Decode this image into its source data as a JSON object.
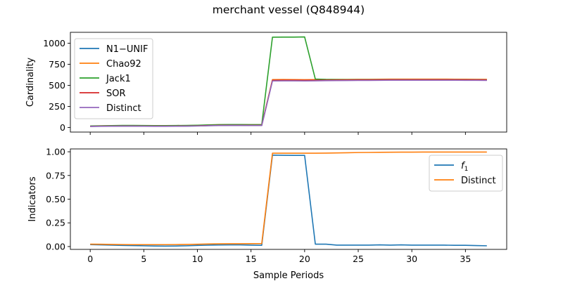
{
  "title": "merchant vessel (Q848944)",
  "colors": {
    "N1-UNIF": "#1f77b4",
    "Chao92": "#ff7f0e",
    "Jack1": "#2ca02c",
    "SOR": "#d62728",
    "Distinct": "#9467bd",
    "f1": "#1f77b4",
    "Distinct2": "#ff7f0e"
  },
  "chart_data": [
    {
      "type": "line",
      "ylabel": "Cardinality",
      "xlabel": "",
      "xlim": [
        -1.85,
        38.85
      ],
      "ylim": [
        -55,
        1130
      ],
      "xticks": [
        0,
        5,
        10,
        15,
        20,
        25,
        30,
        35
      ],
      "yticks": [
        0,
        250,
        500,
        750,
        1000
      ],
      "yticklabels": [
        "0",
        "250",
        "500",
        "750",
        "1000"
      ],
      "legend_position": "upper left",
      "x": [
        0,
        1,
        2,
        3,
        4,
        5,
        6,
        7,
        8,
        9,
        10,
        11,
        12,
        13,
        14,
        15,
        16,
        17,
        18,
        19,
        20,
        21,
        22,
        23,
        24,
        25,
        26,
        27,
        28,
        29,
        30,
        31,
        32,
        33,
        34,
        35,
        36,
        37
      ],
      "series": [
        {
          "name": "N1−UNIF",
          "color": "#1f77b4",
          "values": [
            12,
            14,
            15,
            16,
            16,
            15,
            14,
            14,
            15,
            16,
            18,
            22,
            24,
            25,
            25,
            24,
            24,
            555,
            556,
            556,
            556,
            557,
            558,
            559,
            560,
            561,
            561,
            562,
            563,
            563,
            563,
            563,
            563,
            563,
            563,
            563,
            562,
            562
          ]
        },
        {
          "name": "Chao92",
          "color": "#ff7f0e",
          "values": [
            16,
            18,
            20,
            22,
            22,
            21,
            20,
            20,
            21,
            22,
            24,
            28,
            31,
            32,
            32,
            31,
            31,
            568,
            569,
            568,
            567,
            568,
            569,
            570,
            571,
            572,
            572,
            573,
            574,
            574,
            574,
            574,
            574,
            574,
            573,
            573,
            572,
            572
          ]
        },
        {
          "name": "Jack1",
          "color": "#2ca02c",
          "values": [
            18,
            20,
            22,
            24,
            24,
            23,
            22,
            22,
            23,
            24,
            26,
            30,
            33,
            34,
            34,
            33,
            33,
            1072,
            1073,
            1073,
            1075,
            575,
            570,
            568,
            567,
            567,
            567,
            567,
            568,
            568,
            567,
            567,
            567,
            567,
            567,
            566,
            566,
            565
          ]
        },
        {
          "name": "SOR",
          "color": "#d62728",
          "values": [
            13,
            15,
            16,
            17,
            17,
            16,
            15,
            15,
            16,
            17,
            19,
            23,
            25,
            26,
            26,
            25,
            25,
            560,
            561,
            561,
            560,
            561,
            562,
            563,
            564,
            565,
            565,
            566,
            567,
            567,
            567,
            567,
            567,
            567,
            567,
            566,
            566,
            565
          ]
        },
        {
          "name": "Distinct",
          "color": "#9467bd",
          "values": [
            12,
            13,
            14,
            15,
            15,
            14,
            13,
            13,
            14,
            15,
            17,
            21,
            23,
            24,
            24,
            23,
            23,
            553,
            554,
            554,
            553,
            554,
            556,
            557,
            558,
            559,
            559,
            560,
            561,
            561,
            561,
            561,
            561,
            561,
            561,
            560,
            560,
            559
          ]
        }
      ]
    },
    {
      "type": "line",
      "ylabel": "Indicators",
      "xlabel": "Sample Periods",
      "xlim": [
        -1.85,
        38.85
      ],
      "ylim": [
        -0.03,
        1.03
      ],
      "xticks": [
        0,
        5,
        10,
        15,
        20,
        25,
        30,
        35
      ],
      "yticks": [
        0,
        0.25,
        0.5,
        0.75,
        1.0
      ],
      "yticklabels": [
        "0.00",
        "0.25",
        "0.50",
        "0.75",
        "1.00"
      ],
      "legend_position": "upper right",
      "x": [
        0,
        1,
        2,
        3,
        4,
        5,
        6,
        7,
        8,
        9,
        10,
        11,
        12,
        13,
        14,
        15,
        16,
        17,
        18,
        19,
        20,
        21,
        22,
        23,
        24,
        25,
        26,
        27,
        28,
        29,
        30,
        31,
        32,
        33,
        34,
        35,
        36,
        37
      ],
      "series": [
        {
          "name": "f1",
          "label_main": "f",
          "label_sub": "1",
          "color": "#1f77b4",
          "values": [
            0.02,
            0.018,
            0.015,
            0.012,
            0.01,
            0.008,
            0.006,
            0.005,
            0.006,
            0.008,
            0.012,
            0.015,
            0.017,
            0.018,
            0.018,
            0.015,
            0.013,
            0.965,
            0.963,
            0.962,
            0.962,
            0.025,
            0.025,
            0.015,
            0.015,
            0.015,
            0.015,
            0.018,
            0.015,
            0.018,
            0.015,
            0.015,
            0.015,
            0.015,
            0.013,
            0.013,
            0.01,
            0.008
          ]
        },
        {
          "name": "Distinct",
          "color": "#ff7f0e",
          "values": [
            0.025,
            0.024,
            0.022,
            0.021,
            0.02,
            0.02,
            0.02,
            0.02,
            0.021,
            0.022,
            0.024,
            0.027,
            0.029,
            0.03,
            0.03,
            0.031,
            0.032,
            0.985,
            0.985,
            0.985,
            0.985,
            0.985,
            0.986,
            0.988,
            0.99,
            0.992,
            0.993,
            0.994,
            0.995,
            0.996,
            0.996,
            0.997,
            0.997,
            0.997,
            0.997,
            0.997,
            0.997,
            0.997
          ]
        }
      ]
    }
  ]
}
